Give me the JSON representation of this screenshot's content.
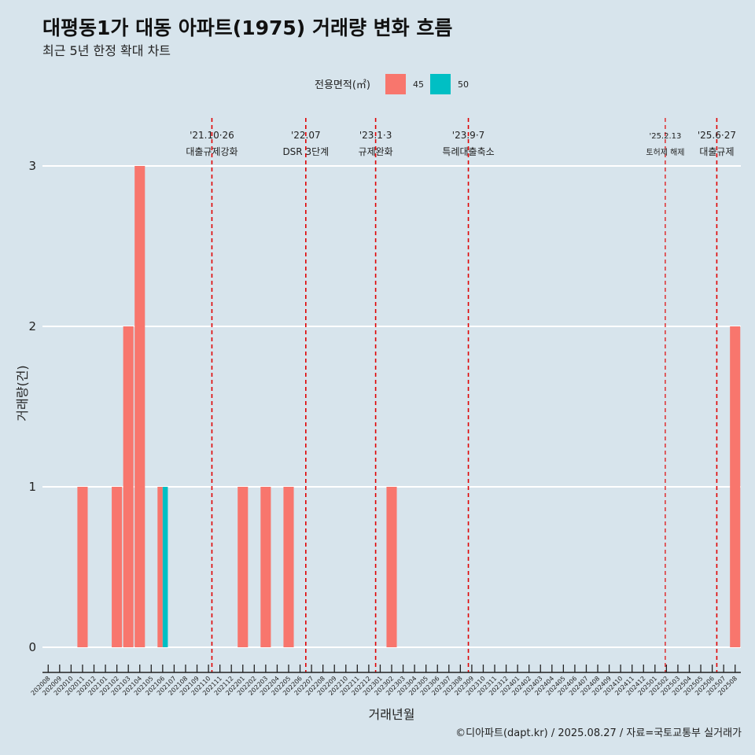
{
  "title": "대평동1가 대동 아파트(1975) 거래량 변화 흐름",
  "subtitle": "최근 5년 한정 확대 차트",
  "caption": "©디아파트(dapt.kr) / 2025.08.27 / 자료=국토교통부 실거래가",
  "colors": {
    "background": "#d7e4ec",
    "grid": "#ffffff",
    "series_45": "#f8766d",
    "series_50": "#00bfc4",
    "annotation": "#e00000"
  },
  "chart_data": {
    "type": "bar",
    "xlabel": "거래년월",
    "ylabel": "거래량(건)",
    "ylim": [
      0,
      3
    ],
    "yticks": [
      0,
      1,
      2,
      3
    ],
    "grid": true,
    "legend": {
      "title": "전용면적(㎡)",
      "position": "top"
    },
    "categories": [
      "202008",
      "202009",
      "202010",
      "202011",
      "202012",
      "202101",
      "202102",
      "202103",
      "202104",
      "202105",
      "202106",
      "202107",
      "202108",
      "202109",
      "202110",
      "202111",
      "202112",
      "202201",
      "202202",
      "202203",
      "202204",
      "202205",
      "202206",
      "202207",
      "202208",
      "202209",
      "202210",
      "202211",
      "202212",
      "202301",
      "202302",
      "202303",
      "202304",
      "202305",
      "202306",
      "202307",
      "202308",
      "202309",
      "202310",
      "202311",
      "202312",
      "202401",
      "202402",
      "202403",
      "202404",
      "202405",
      "202406",
      "202407",
      "202408",
      "202409",
      "202410",
      "202411",
      "202412",
      "202501",
      "202502",
      "202503",
      "202504",
      "202505",
      "202506",
      "202507",
      "202508"
    ],
    "series": [
      {
        "name": "45",
        "color": "#f8766d",
        "values": [
          0,
          0,
          0,
          1,
          0,
          0,
          1,
          2,
          3,
          0,
          1,
          0,
          0,
          0,
          0,
          0,
          0,
          1,
          0,
          1,
          0,
          1,
          0,
          0,
          0,
          0,
          0,
          0,
          0,
          0,
          1,
          0,
          0,
          0,
          0,
          0,
          0,
          0,
          0,
          0,
          0,
          0,
          0,
          0,
          0,
          0,
          0,
          0,
          0,
          0,
          0,
          0,
          0,
          0,
          0,
          0,
          0,
          0,
          0,
          0,
          2
        ]
      },
      {
        "name": "50",
        "color": "#00bfc4",
        "values": [
          0,
          0,
          0,
          0,
          0,
          0,
          0,
          0,
          0,
          0,
          1,
          0,
          0,
          0,
          0,
          0,
          0,
          0,
          0,
          0,
          0,
          0,
          0,
          0,
          0,
          0,
          0,
          0,
          0,
          0,
          0,
          0,
          0,
          0,
          0,
          0,
          0,
          0,
          0,
          0,
          0,
          0,
          0,
          0,
          0,
          0,
          0,
          0,
          0,
          0,
          0,
          0,
          0,
          0,
          0,
          0,
          0,
          0,
          0,
          0,
          0
        ]
      }
    ],
    "annotations": [
      {
        "date": "'21.10·26",
        "label": "대출규제강화",
        "x": "202110",
        "offset": 0.8,
        "small": false
      },
      {
        "date": "'22.07",
        "label": "DSR 3단계",
        "x": "202207",
        "offset": 0.0,
        "small": false
      },
      {
        "date": "'23.1·3",
        "label": "규제완화",
        "x": "202301",
        "offset": 0.1,
        "small": false
      },
      {
        "date": "'23.9·7",
        "label": "특례대출축소",
        "x": "202309",
        "offset": 0.2,
        "small": false
      },
      {
        "date": "'25.2.13",
        "label": "토허제 해제",
        "x": "202502",
        "offset": 0.4,
        "small": true
      },
      {
        "date": "'25.6·27",
        "label": "대출규제",
        "x": "202506",
        "offset": 0.9,
        "small": false
      }
    ]
  }
}
